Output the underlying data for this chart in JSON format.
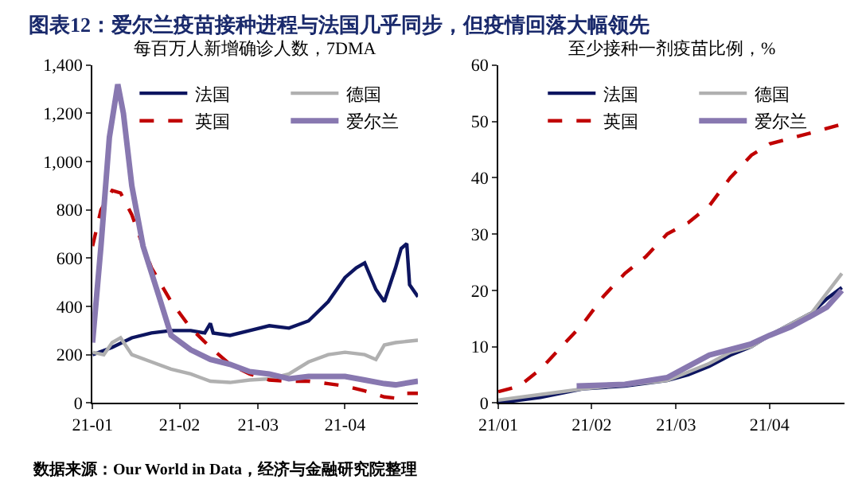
{
  "chart_data": [
    {
      "type": "line",
      "title": "图表12：爱尔兰疫苗接种进程与法国几乎同步，但疫情回落大幅领先",
      "subtitle": "每百万人新增确诊人数，7DMA",
      "annotations": [
        "数据来源：Our World in Data，经济与金融研究院整理"
      ],
      "xlim": [
        "--01-01",
        "--04-27"
      ],
      "xticks": [
        {
          "value": "--01-01",
          "label": "21-01"
        },
        {
          "value": "--02-01",
          "label": "21-02"
        },
        {
          "value": "--03-01",
          "label": "21-03"
        },
        {
          "value": "--04-01",
          "label": "21-04"
        }
      ],
      "ylim": [
        0,
        1400
      ],
      "yticks": [
        {
          "value": 0,
          "label": "0"
        },
        {
          "value": 200,
          "label": "200"
        },
        {
          "value": 400,
          "label": "400"
        },
        {
          "value": 600,
          "label": "600"
        },
        {
          "value": 800,
          "label": "800"
        },
        {
          "value": 1000,
          "label": "1,000"
        },
        {
          "value": 1200,
          "label": "1,200"
        },
        {
          "value": 1400,
          "label": "1,400"
        }
      ],
      "grid": false,
      "legend": "top",
      "marker": "none",
      "series": [
        {
          "name": "法国",
          "color": "#0d1560",
          "line_style": "solid",
          "x": [
            "--01-01",
            "--01-08",
            "--01-15",
            "--01-22",
            "--01-29",
            "--02-05",
            "--02-10",
            "--02-12",
            "--02-13",
            "--02-19",
            "--02-26",
            "--03-05",
            "--03-12",
            "--03-19",
            "--03-26",
            "--04-01",
            "--04-05",
            "--04-08",
            "--04-12",
            "--04-15",
            "--04-19",
            "--04-21",
            "--04-23",
            "--04-24",
            "--04-27"
          ],
          "values": [
            200,
            230,
            270,
            290,
            300,
            300,
            290,
            330,
            290,
            280,
            300,
            320,
            310,
            340,
            420,
            520,
            560,
            580,
            470,
            420,
            560,
            640,
            660,
            490,
            440
          ]
        },
        {
          "name": "德国",
          "color": "#b0b0b0",
          "line_style": "solid",
          "x": [
            "--01-01",
            "--01-05",
            "--01-08",
            "--01-11",
            "--01-15",
            "--01-22",
            "--01-29",
            "--02-05",
            "--02-12",
            "--02-19",
            "--02-26",
            "--03-05",
            "--03-12",
            "--03-19",
            "--03-26",
            "--04-01",
            "--04-08",
            "--04-12",
            "--04-15",
            "--04-19",
            "--04-27"
          ],
          "values": [
            210,
            200,
            250,
            270,
            200,
            170,
            140,
            120,
            90,
            85,
            95,
            100,
            120,
            170,
            200,
            210,
            200,
            180,
            240,
            250,
            260
          ]
        },
        {
          "name": "英国",
          "color": "#c00000",
          "line_style": "dashed",
          "x": [
            "--01-01",
            "--01-04",
            "--01-08",
            "--01-11",
            "--01-15",
            "--01-19",
            "--01-22",
            "--01-29",
            "--02-05",
            "--02-12",
            "--02-19",
            "--02-26",
            "--03-05",
            "--03-12",
            "--03-19",
            "--03-26",
            "--04-01",
            "--04-08",
            "--04-15",
            "--04-19",
            "--04-22",
            "--04-27"
          ],
          "values": [
            650,
            800,
            880,
            870,
            780,
            650,
            560,
            420,
            310,
            230,
            160,
            120,
            95,
            90,
            90,
            80,
            70,
            50,
            25,
            20,
            40,
            40
          ]
        },
        {
          "name": "爱尔兰",
          "color": "#8878b0",
          "line_style": "solid",
          "x": [
            "--01-01",
            "--01-04",
            "--01-07",
            "--01-10",
            "--01-12",
            "--01-15",
            "--01-19",
            "--01-25",
            "--01-29",
            "--02-05",
            "--02-12",
            "--02-19",
            "--02-26",
            "--03-05",
            "--03-12",
            "--03-19",
            "--03-26",
            "--04-01",
            "--04-08",
            "--04-15",
            "--04-19",
            "--04-27"
          ],
          "values": [
            250,
            650,
            1100,
            1320,
            1200,
            900,
            650,
            430,
            280,
            220,
            180,
            160,
            130,
            120,
            100,
            110,
            110,
            110,
            95,
            80,
            75,
            90
          ]
        }
      ]
    },
    {
      "type": "line",
      "subtitle": "至少接种一剂疫苗比例，%",
      "xlim": [
        "--01-01",
        "--04-26"
      ],
      "xticks": [
        {
          "value": "--01-01",
          "label": "21/01"
        },
        {
          "value": "--02-01",
          "label": "21/02"
        },
        {
          "value": "--03-01",
          "label": "21/03"
        },
        {
          "value": "--04-01",
          "label": "21/04"
        }
      ],
      "ylim": [
        0,
        60
      ],
      "yticks": [
        0,
        10,
        20,
        30,
        40,
        50,
        60
      ],
      "grid": false,
      "legend": "top",
      "marker": "none",
      "series": [
        {
          "name": "法国",
          "color": "#0d1560",
          "line_style": "solid",
          "x": [
            "--01-01",
            "--01-15",
            "--01-29",
            "--02-12",
            "--02-26",
            "--03-05",
            "--03-12",
            "--03-19",
            "--03-26",
            "--04-01",
            "--04-08",
            "--04-15",
            "--04-20",
            "--04-25"
          ],
          "values": [
            0,
            1,
            2.5,
            3,
            4,
            5,
            6.5,
            8.5,
            10,
            12,
            14,
            16,
            18.5,
            20.5
          ]
        },
        {
          "name": "德国",
          "color": "#b0b0b0",
          "line_style": "solid",
          "x": [
            "--01-01",
            "--01-15",
            "--01-29",
            "--02-12",
            "--02-26",
            "--03-05",
            "--03-12",
            "--03-19",
            "--03-26",
            "--04-01",
            "--04-08",
            "--04-15",
            "--04-20",
            "--04-25"
          ],
          "values": [
            0.5,
            1.5,
            2.5,
            3.2,
            4,
            5.5,
            7,
            9,
            10,
            12,
            14,
            16,
            19.5,
            23
          ]
        },
        {
          "name": "英国",
          "color": "#c00000",
          "line_style": "dashed",
          "x": [
            "--01-01",
            "--01-08",
            "--01-15",
            "--01-22",
            "--01-29",
            "--02-05",
            "--02-12",
            "--02-19",
            "--02-26",
            "--03-05",
            "--03-12",
            "--03-19",
            "--03-26",
            "--04-01",
            "--04-08",
            "--04-15",
            "--04-25"
          ],
          "values": [
            2,
            3,
            6,
            10,
            14,
            19,
            23,
            26,
            30,
            32,
            35,
            40,
            44,
            46,
            47,
            48,
            49.5
          ]
        },
        {
          "name": "爱尔兰",
          "color": "#8878b0",
          "line_style": "solid",
          "x": [
            "--01-27",
            "--02-12",
            "--02-26",
            "--03-05",
            "--03-12",
            "--03-19",
            "--03-26",
            "--04-01",
            "--04-08",
            "--04-15",
            "--04-20",
            "--04-25"
          ],
          "values": [
            3,
            3.3,
            4.5,
            6.5,
            8.5,
            9.5,
            10.5,
            12,
            13.5,
            15.5,
            17,
            20
          ]
        }
      ]
    }
  ]
}
